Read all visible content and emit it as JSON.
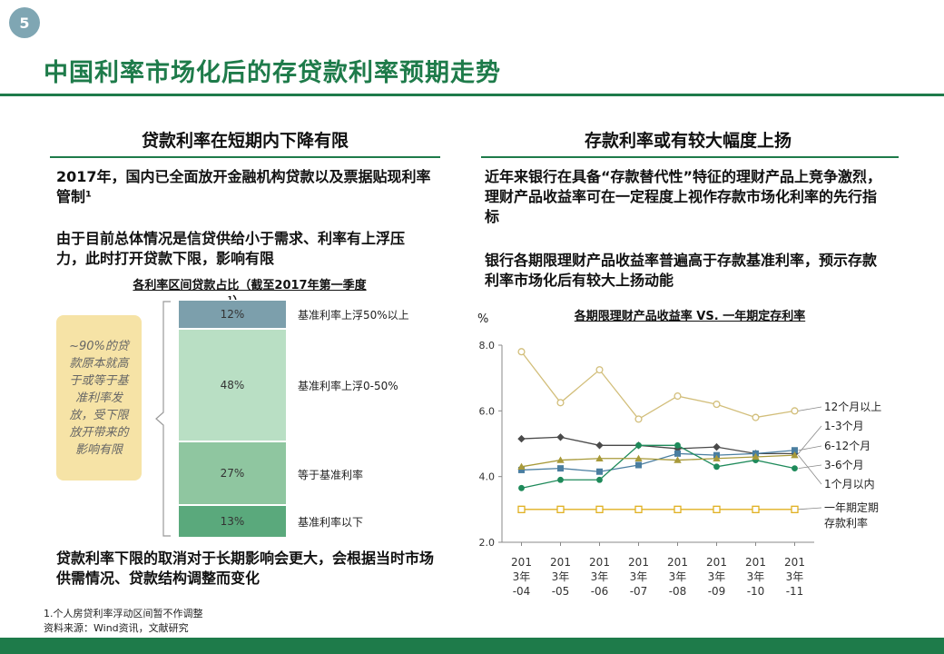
{
  "page_number": "5",
  "title": "中国利率市场化后的存贷款利率预期走势",
  "left": {
    "heading": "贷款利率在短期内下降有限",
    "para1": "2017年，国内已全面放开金融机构贷款以及票据贴现利率管制¹",
    "para2": "由于目前总体情况是信贷供给小于需求、利率有上浮压力，此时打开贷款下限，影响有限",
    "bar_chart_title_line1": "各利率区间贷款占比（截至2017年第一季度",
    "bar_chart_title_line2": "¹）",
    "callout": "~90%的贷款原本就高于或等于基准利率发放，受下限放开带来的影响有限",
    "conclusion": "贷款利率下限的取消对于长期影响会更大，会根据当时市场供需情况、贷款结构调整而变化"
  },
  "right": {
    "heading": "存款利率或有较大幅度上扬",
    "para1": "近年来银行在具备“存款替代性”特征的理财产品上竞争激烈，理财产品收益率可在一定程度上视作存款市场化利率的先行指标",
    "para2": "银行各期限理财产品收益率普遍高于存款基准利率，预示存款利率市场化后有较大上扬动能",
    "line_chart_title": "各期限理财产品收益率 VS. 一年期定存利率",
    "y_unit": "%"
  },
  "footnotes": {
    "note1": "1.个人房贷利率浮动区间暂不作调整",
    "source": "资料来源：Wind资讯，文献研究"
  },
  "colors": {
    "brand_green": "#1e7b4a",
    "seg_above50": "#7c9fac",
    "seg_0_50": "#b9dfc4",
    "seg_equal": "#8fc6a0",
    "seg_below": "#5aa97c",
    "s_12m": "#d2be7a",
    "s_1_3m": "#4a4a4a",
    "s_6_12m": "#4a7ea0",
    "s_3_6m": "#1e8a5a",
    "s_1m": "#a89a3a",
    "s_deposit": "#e0b020"
  },
  "chart_data": [
    {
      "type": "bar",
      "stacked": true,
      "title": "各利率区间贷款占比（截至2017年第一季度¹）",
      "segments": [
        {
          "label": "基准利率上浮50%以上",
          "value": 12,
          "value_label": "12%"
        },
        {
          "label": "基准利率上浮0-50%",
          "value": 48,
          "value_label": "48%"
        },
        {
          "label": "等于基准利率",
          "value": 27,
          "value_label": "27%"
        },
        {
          "label": "基准利率以下",
          "value": 13,
          "value_label": "13%"
        }
      ]
    },
    {
      "type": "line",
      "title": "各期限理财产品收益率 VS. 一年期定存利率",
      "ylabel": "%",
      "ylim": [
        2.0,
        8.0
      ],
      "yticks": [
        "2.0",
        "4.0",
        "6.0",
        "8.0"
      ],
      "x_line1": [
        "201",
        "201",
        "201",
        "201",
        "201",
        "201",
        "201",
        "201"
      ],
      "x_line2": [
        "3年",
        "3年",
        "3年",
        "3年",
        "3年",
        "3年",
        "3年",
        "3年"
      ],
      "x_line3": [
        "-04",
        "-05",
        "-06",
        "-07",
        "-08",
        "-09",
        "-10",
        "-11"
      ],
      "series": [
        {
          "name": "12个月以上",
          "marker": "circle-open",
          "values": [
            7.8,
            6.25,
            7.25,
            5.75,
            6.45,
            6.2,
            5.8,
            6.0
          ]
        },
        {
          "name": "1-3个月",
          "marker": "diamond",
          "values": [
            5.15,
            5.2,
            4.95,
            4.95,
            4.85,
            4.9,
            4.7,
            4.7
          ]
        },
        {
          "name": "6-12个月",
          "marker": "square",
          "values": [
            4.2,
            4.25,
            4.15,
            4.35,
            4.7,
            4.65,
            4.7,
            4.8
          ]
        },
        {
          "name": "3-6个月",
          "marker": "circle",
          "values": [
            3.65,
            3.9,
            3.9,
            4.95,
            4.95,
            4.3,
            4.5,
            4.25
          ]
        },
        {
          "name": "1个月以内",
          "marker": "triangle",
          "values": [
            4.3,
            4.5,
            4.55,
            4.55,
            4.5,
            4.55,
            4.6,
            4.65
          ]
        },
        {
          "name": "一年期定期存款利率",
          "label_line1": "一年期定期",
          "label_line2": "存款利率",
          "marker": "square-open",
          "values": [
            3.0,
            3.0,
            3.0,
            3.0,
            3.0,
            3.0,
            3.0,
            3.0
          ]
        }
      ]
    }
  ]
}
